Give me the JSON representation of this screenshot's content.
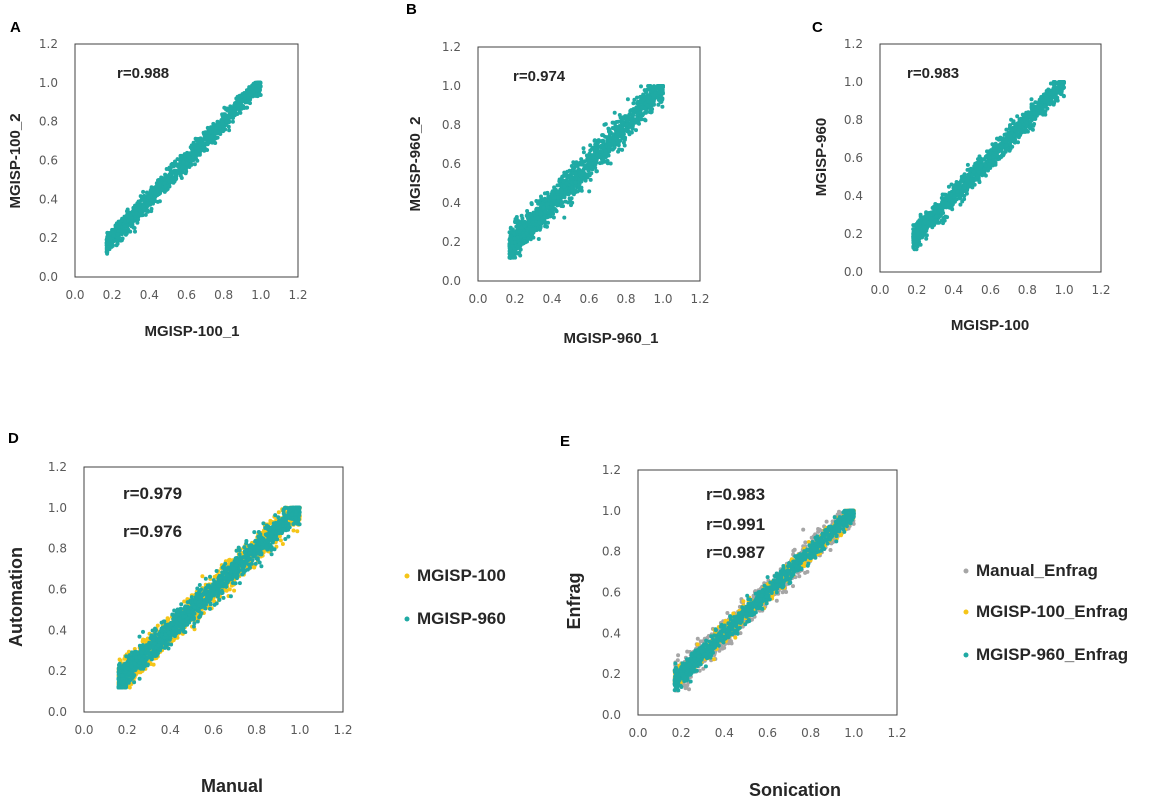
{
  "colors": {
    "teal": "#1FAAA4",
    "yellow": "#F5C518",
    "gray": "#A6A6A6",
    "frame": "#404040",
    "tick_text": "#595959"
  },
  "chart_data": [
    {
      "panel": "A",
      "type": "scatter",
      "xlabel": "MGISP-100_1",
      "ylabel": "MGISP-100_2",
      "xlim": [
        0.0,
        1.2
      ],
      "ylim": [
        0.0,
        1.2
      ],
      "xticks": [
        "0.0",
        "0.2",
        "0.4",
        "0.6",
        "0.8",
        "1.0",
        "1.2"
      ],
      "yticks": [
        "0.0",
        "0.2",
        "0.4",
        "0.6",
        "0.8",
        "1.0",
        "1.2"
      ],
      "grid": false,
      "annotations": [
        "r=0.988"
      ],
      "series": [
        {
          "color": "#1FAAA4",
          "n_points": 1200,
          "x_range": [
            0.17,
            1.0
          ],
          "trend": "y≈x",
          "spread": 0.025
        }
      ]
    },
    {
      "panel": "B",
      "type": "scatter",
      "xlabel": "MGISP-960_1",
      "ylabel": "MGISP-960_2",
      "xlim": [
        0.0,
        1.2
      ],
      "ylim": [
        0.0,
        1.2
      ],
      "xticks": [
        "0.0",
        "0.2",
        "0.4",
        "0.6",
        "0.8",
        "1.0",
        "1.2"
      ],
      "yticks": [
        "0.0",
        "0.2",
        "0.4",
        "0.6",
        "0.8",
        "1.0",
        "1.2"
      ],
      "grid": false,
      "annotations": [
        "r=0.974"
      ],
      "series": [
        {
          "color": "#1FAAA4",
          "n_points": 1500,
          "x_range": [
            0.17,
            1.0
          ],
          "trend": "y≈x",
          "spread": 0.04
        }
      ]
    },
    {
      "panel": "C",
      "type": "scatter",
      "xlabel": "MGISP-100",
      "ylabel": "MGISP-960",
      "xlim": [
        0.0,
        1.2
      ],
      "ylim": [
        0.0,
        1.2
      ],
      "xticks": [
        "0.0",
        "0.2",
        "0.4",
        "0.6",
        "0.8",
        "1.0",
        "1.2"
      ],
      "yticks": [
        "0.0",
        "0.2",
        "0.4",
        "0.6",
        "0.8",
        "1.0",
        "1.2"
      ],
      "grid": false,
      "annotations": [
        "r=0.983"
      ],
      "series": [
        {
          "color": "#1FAAA4",
          "n_points": 1300,
          "x_range": [
            0.18,
            1.0
          ],
          "trend": "y≈x",
          "spread": 0.03
        }
      ]
    },
    {
      "panel": "D",
      "type": "scatter",
      "xlabel": "Manual",
      "ylabel": "Automation",
      "xlim": [
        0.0,
        1.2
      ],
      "ylim": [
        0.0,
        1.2
      ],
      "xticks": [
        "0.0",
        "0.2",
        "0.4",
        "0.6",
        "0.8",
        "1.0",
        "1.2"
      ],
      "yticks": [
        "0.0",
        "0.2",
        "0.4",
        "0.6",
        "0.8",
        "1.0",
        "1.2"
      ],
      "grid": false,
      "annotations": [
        "r=0.979",
        "r=0.976"
      ],
      "legend_position": "right",
      "series": [
        {
          "name": "MGISP-100",
          "color": "#F5C518",
          "n_points": 1500,
          "x_range": [
            0.16,
            1.0
          ],
          "trend": "y≈x",
          "spread": 0.035
        },
        {
          "name": "MGISP-960",
          "color": "#1FAAA4",
          "n_points": 1600,
          "x_range": [
            0.16,
            1.0
          ],
          "trend": "y≈x",
          "spread": 0.033
        }
      ]
    },
    {
      "panel": "E",
      "type": "scatter",
      "xlabel": "Sonication",
      "ylabel": "Enfrag",
      "xlim": [
        0.0,
        1.2
      ],
      "ylim": [
        0.0,
        1.2
      ],
      "xticks": [
        "0.0",
        "0.2",
        "0.4",
        "0.6",
        "0.8",
        "1.0",
        "1.2"
      ],
      "yticks": [
        "0.0",
        "0.2",
        "0.4",
        "0.6",
        "0.8",
        "1.0",
        "1.2"
      ],
      "grid": false,
      "annotations": [
        "r=0.983",
        "r=0.991",
        "r=0.987"
      ],
      "legend_position": "right",
      "series": [
        {
          "name": "Manual_Enfrag",
          "color": "#A6A6A6",
          "n_points": 900,
          "x_range": [
            0.17,
            1.0
          ],
          "trend": "y≈x",
          "spread": 0.035
        },
        {
          "name": "MGISP-100_Enfrag",
          "color": "#F5C518",
          "n_points": 900,
          "x_range": [
            0.17,
            1.0
          ],
          "trend": "y≈x",
          "spread": 0.022
        },
        {
          "name": "MGISP-960_Enfrag",
          "color": "#1FAAA4",
          "n_points": 1000,
          "x_range": [
            0.17,
            1.0
          ],
          "trend": "y≈x",
          "spread": 0.025
        }
      ]
    }
  ]
}
